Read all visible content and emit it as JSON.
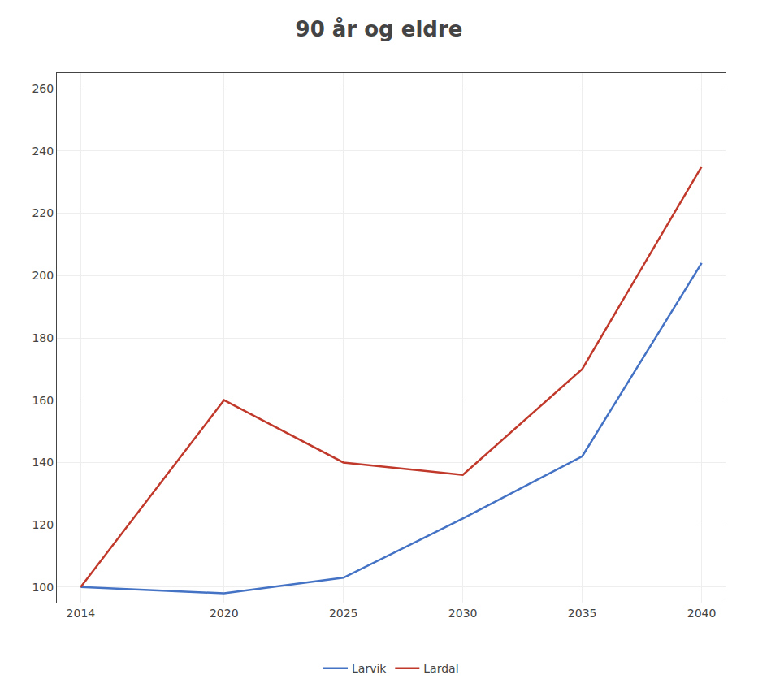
{
  "chart_data": {
    "type": "line",
    "title": "90 år og eldre",
    "x": [
      2014,
      2020,
      2025,
      2030,
      2035,
      2040
    ],
    "series": [
      {
        "name": "Larvik",
        "color": "#4472C4",
        "values": [
          100,
          98,
          103,
          122,
          142,
          204
        ]
      },
      {
        "name": "Lardal",
        "color": "#C0392B",
        "values": [
          100,
          160,
          140,
          136,
          170,
          235
        ]
      }
    ],
    "xlim": [
      2013,
      2041
    ],
    "xticks": [
      2014,
      2020,
      2025,
      2030,
      2035,
      2040
    ],
    "ylim": [
      95,
      265
    ],
    "yticks": [
      100,
      120,
      140,
      160,
      180,
      200,
      220,
      240,
      260
    ],
    "grid": true,
    "legend": "bottom"
  }
}
